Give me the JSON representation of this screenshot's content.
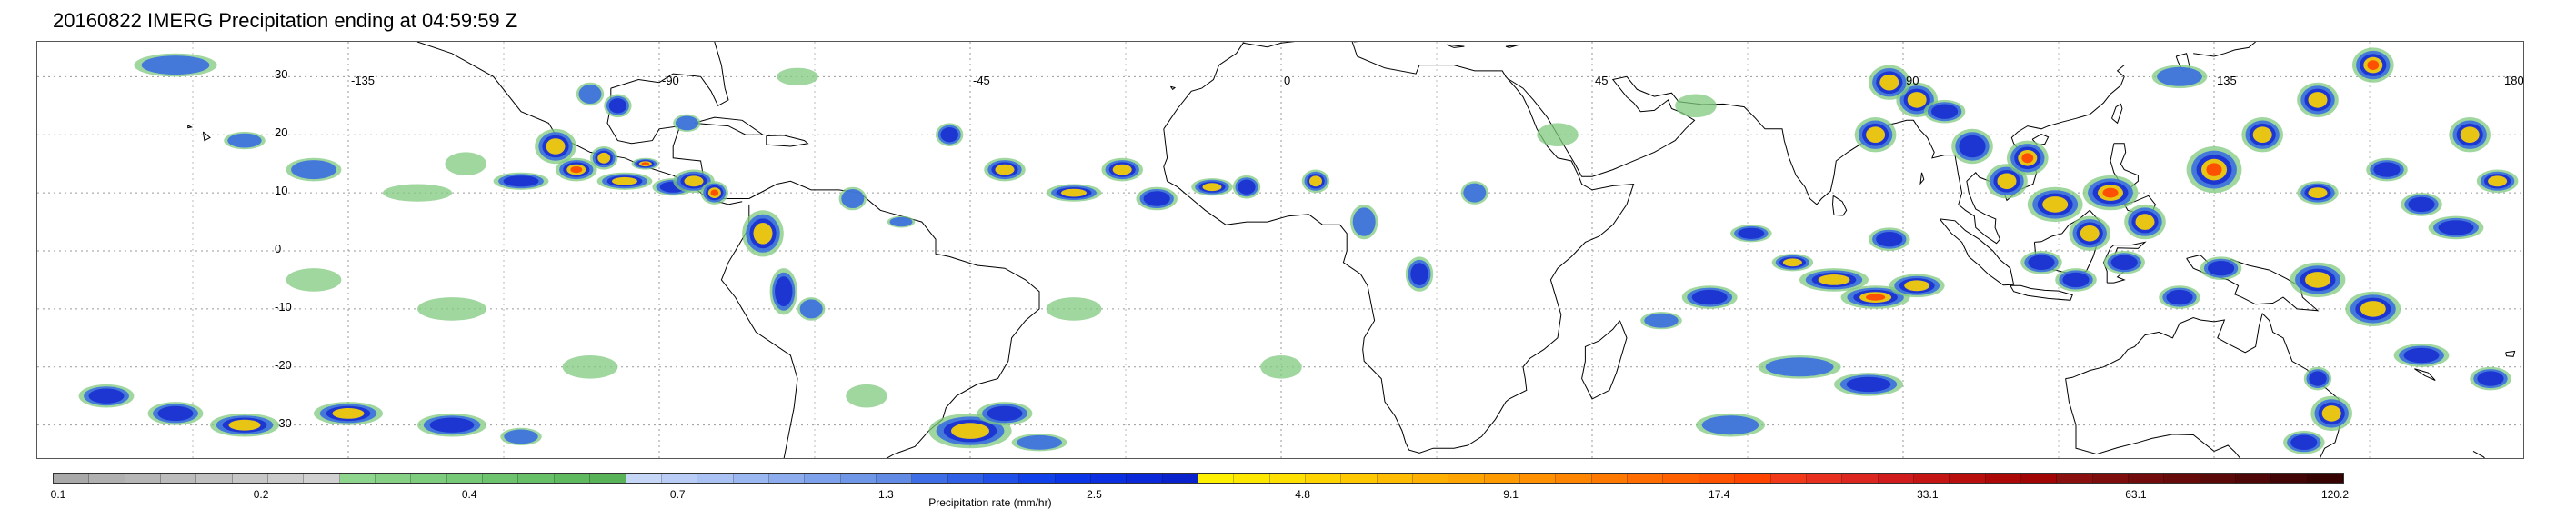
{
  "title": "20160822 IMERG Precipitation ending at 04:59:59 Z",
  "map": {
    "latitude_labels": [
      "30",
      "20",
      "10",
      "0",
      "-10",
      "-20",
      "-30"
    ],
    "latitude_values": [
      30,
      20,
      10,
      0,
      -10,
      -20,
      -30
    ],
    "longitude_labels": [
      "-135",
      "-90",
      "-45",
      "0",
      "45",
      "90",
      "135",
      "180"
    ],
    "longitude_values": [
      -135,
      -90,
      -45,
      0,
      45,
      90,
      135,
      180
    ],
    "lat_range": [
      -36,
      36
    ],
    "lon_range": [
      -180,
      180
    ],
    "grid": "dotted",
    "coastline_color": "#000000"
  },
  "colorbar": {
    "label": "Precipitation rate (mm/hr)",
    "tick_labels": [
      "0.1",
      "0.2",
      "0.4",
      "0.7",
      "1.3",
      "2.5",
      "4.8",
      "9.1",
      "17.4",
      "33.1",
      "63.1",
      "120.2"
    ],
    "colors": [
      "#a9a9a9",
      "#b0b0b0",
      "#b6b6b6",
      "#bcbcbc",
      "#c2c2c2",
      "#c7c7c7",
      "#cccccc",
      "#d1d1d1",
      "#8ed58e",
      "#86d186",
      "#7ecd7e",
      "#76c976",
      "#6ec46e",
      "#67bf67",
      "#5fb95f",
      "#58b358",
      "#c6d6f7",
      "#b8ccf5",
      "#a9c1f3",
      "#9bb7f1",
      "#8cacee",
      "#7ea1eb",
      "#7096e8",
      "#628be5",
      "#3f6de6",
      "#2f60e6",
      "#2050e8",
      "#1040ea",
      "#0a35e6",
      "#0a2ee0",
      "#0a28d8",
      "#0a22cc",
      "#fff000",
      "#ffe800",
      "#ffe000",
      "#ffd400",
      "#ffc800",
      "#ffbc00",
      "#ffb000",
      "#ffa400",
      "#ff9b00",
      "#ff9000",
      "#ff8400",
      "#ff7800",
      "#ff6c00",
      "#ff6000",
      "#ff5200",
      "#ff4400",
      "#f23a1a",
      "#e83020",
      "#dc2620",
      "#d01c1c",
      "#c41414",
      "#b80e0e",
      "#ac0808",
      "#a00404",
      "#8a1010",
      "#7e0e0e",
      "#720c0c",
      "#660a0a",
      "#5a0808",
      "#4e0606",
      "#420404",
      "#360202"
    ],
    "scale": "log"
  },
  "precip_palette": {
    "light": "#7fc97f",
    "moderate": "#3a6fe0",
    "heavy": "#1a2fd0",
    "intense": "#ffd400",
    "extreme": "#ff4400",
    "peak": "#a00404"
  }
}
